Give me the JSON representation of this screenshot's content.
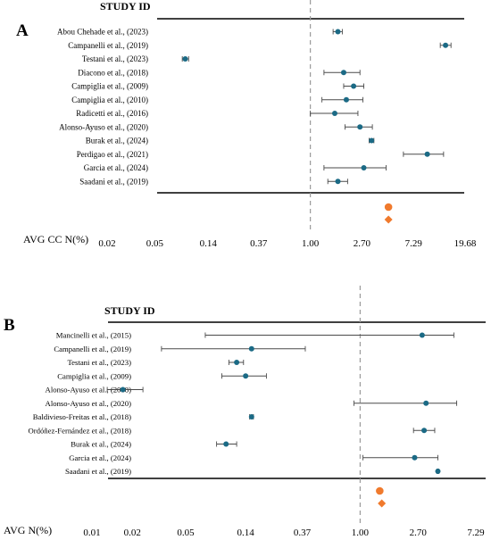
{
  "chart_data": [
    {
      "type": "forest",
      "panel_label": "A",
      "header": "STUDY ID",
      "xlabel": "AVG CC N(%)",
      "xscale": "log",
      "reference_line": 1.0,
      "tick_values": [
        0.02,
        0.05,
        0.14,
        0.37,
        1.0,
        2.7,
        7.29,
        19.68
      ],
      "tick_labels": [
        "0.02",
        "0.05",
        "0.14",
        "0.37",
        "1.00",
        "2.70",
        "7.29",
        "19.68"
      ],
      "study_color": "#1b6a85",
      "summary_color": "#f07a2d",
      "studies": [
        {
          "label": "Abou Chehade et al., (2023)",
          "estimate": 1.7,
          "lower": 1.55,
          "upper": 1.85
        },
        {
          "label": "Campanelli et al., (2019)",
          "estimate": 13.5,
          "lower": 12.2,
          "upper": 15.0
        },
        {
          "label": "Testani et al., (2023)",
          "estimate": 0.09,
          "lower": 0.085,
          "upper": 0.096
        },
        {
          "label": "Diacono et al., (2018)",
          "estimate": 1.9,
          "lower": 1.3,
          "upper": 2.6
        },
        {
          "label": "Campiglia et al., (2009)",
          "estimate": 2.3,
          "lower": 1.9,
          "upper": 2.8
        },
        {
          "label": "Campiglia et al., (2010)",
          "estimate": 2.0,
          "lower": 1.25,
          "upper": 2.75
        },
        {
          "label": "Radicetti et al., (2016)",
          "estimate": 1.6,
          "lower": 1.0,
          "upper": 2.5
        },
        {
          "label": "Alonso-Ayuso et al., (2020)",
          "estimate": 2.6,
          "lower": 1.95,
          "upper": 3.3
        },
        {
          "label": "Burak et al., (2024)",
          "estimate": 3.25,
          "lower": 3.1,
          "upper": 3.4
        },
        {
          "label": "Perdigao et al., (2021)",
          "estimate": 9.5,
          "lower": 6.0,
          "upper": 13.0
        },
        {
          "label": "Garcia et al., (2024)",
          "estimate": 2.8,
          "lower": 1.3,
          "upper": 4.3
        },
        {
          "label": "Saadani et al., (2019)",
          "estimate": 1.7,
          "lower": 1.4,
          "upper": 2.05
        }
      ],
      "summary": [
        {
          "shape": "circle",
          "estimate": 4.5
        },
        {
          "shape": "diamond",
          "estimate": 4.5
        }
      ]
    },
    {
      "type": "forest",
      "panel_label": "B",
      "header": "STUDY ID",
      "xlabel": "AVG N(%)",
      "xscale": "log",
      "reference_line": 1.0,
      "tick_values": [
        0.01,
        0.02,
        0.05,
        0.14,
        0.37,
        1.0,
        2.7,
        7.29
      ],
      "tick_labels": [
        "0.01",
        "0.02",
        "0.05",
        "0.14",
        "0.37",
        "1.00",
        "2.70",
        "7.29"
      ],
      "study_color": "#1b6a85",
      "summary_color": "#f07a2d",
      "studies": [
        {
          "label": "Mancinelli et al., (2015)",
          "estimate": 2.9,
          "lower": 0.07,
          "upper": 5.0
        },
        {
          "label": "Campanelli et al., (2019)",
          "estimate": 0.155,
          "lower": 0.033,
          "upper": 0.39
        },
        {
          "label": "Testani et al., (2023)",
          "estimate": 0.12,
          "lower": 0.105,
          "upper": 0.135
        },
        {
          "label": "Campiglia et al., (2009)",
          "estimate": 0.14,
          "lower": 0.093,
          "upper": 0.2
        },
        {
          "label": "Alonso-Ayuso et al., (2018)",
          "estimate": 0.017,
          "lower": 0.013,
          "upper": 0.024
        },
        {
          "label": "Alonso-Ayuso et al., (2020)",
          "estimate": 3.1,
          "lower": 0.9,
          "upper": 5.25
        },
        {
          "label": "Baldivieso-Freitas et al., (2018)",
          "estimate": 0.155,
          "lower": 0.15,
          "upper": 0.16
        },
        {
          "label": "Ordóñez-Fernández et al., (2018)",
          "estimate": 3.0,
          "lower": 2.5,
          "upper": 3.6
        },
        {
          "label": "Burak et al., (2024)",
          "estimate": 0.1,
          "lower": 0.085,
          "upper": 0.12
        },
        {
          "label": "Garcia et al., (2024)",
          "estimate": 2.55,
          "lower": 1.05,
          "upper": 3.8
        },
        {
          "label": "Saadani et al., (2019)",
          "estimate": 3.8,
          "lower": 3.75,
          "upper": 3.85
        }
      ],
      "summary": [
        {
          "shape": "circle",
          "estimate": 1.4
        },
        {
          "shape": "diamond",
          "estimate": 1.45
        }
      ]
    }
  ]
}
